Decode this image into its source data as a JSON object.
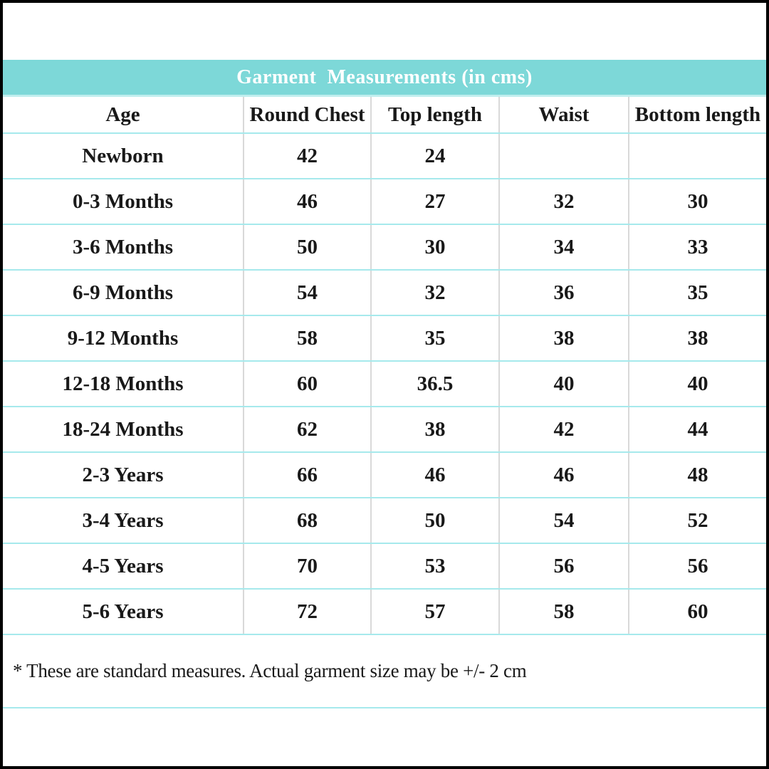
{
  "page": {
    "title": "Garment  Measurements (in cms)",
    "footnote": "* These are standard measures. Actual garment size may be +/- 2 cm"
  },
  "colors": {
    "band": "#7dd8d8",
    "row_line": "#a6e9ec",
    "column_line": "#d9d9d9",
    "text": "#191919",
    "title_text": "#ffffff",
    "outer_border": "#000000"
  },
  "table": {
    "headers": [
      "Age",
      "Round Chest",
      "Top length",
      "Waist",
      "Bottom length"
    ],
    "rows": [
      [
        "Newborn",
        "42",
        "24",
        "",
        ""
      ],
      [
        "0-3 Months",
        "46",
        "27",
        "32",
        "30"
      ],
      [
        "3-6 Months",
        "50",
        "30",
        "34",
        "33"
      ],
      [
        "6-9 Months",
        "54",
        "32",
        "36",
        "35"
      ],
      [
        "9-12 Months",
        "58",
        "35",
        "38",
        "38"
      ],
      [
        "12-18 Months",
        "60",
        "36.5",
        "40",
        "40"
      ],
      [
        "18-24 Months",
        "62",
        "38",
        "42",
        "44"
      ],
      [
        "2-3 Years",
        "66",
        "46",
        "46",
        "48"
      ],
      [
        "3-4 Years",
        "68",
        "50",
        "54",
        "52"
      ],
      [
        "4-5 Years",
        "70",
        "53",
        "56",
        "56"
      ],
      [
        "5-6 Years",
        "72",
        "57",
        "58",
        "60"
      ]
    ]
  }
}
